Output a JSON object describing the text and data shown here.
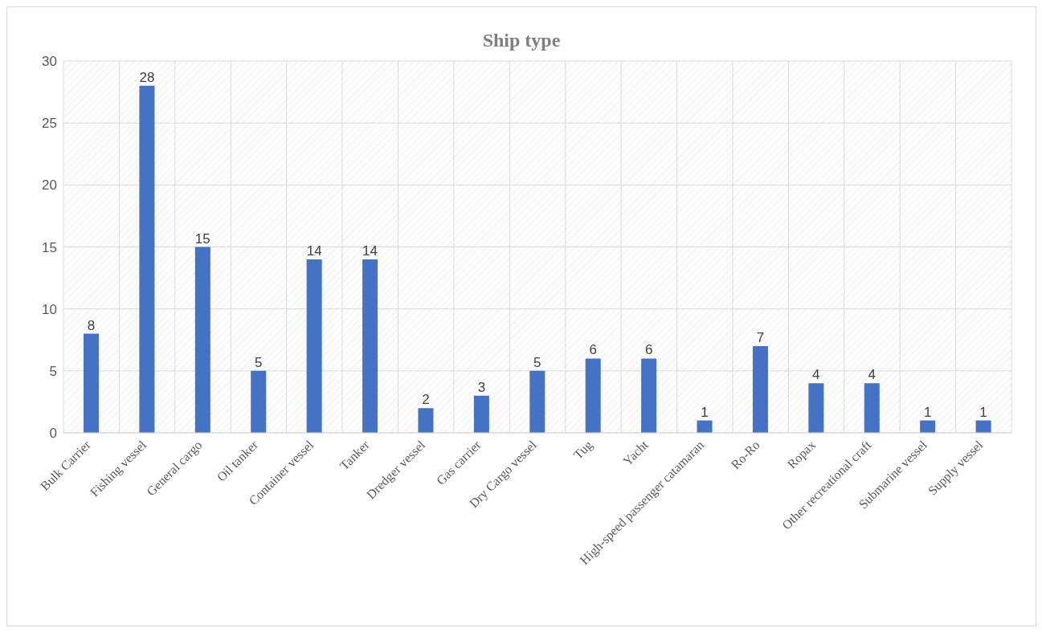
{
  "chart_data": {
    "type": "bar",
    "title": "Ship type",
    "categories": [
      "Bulk Carrier",
      "Fishing vessel",
      "General cargo",
      "Oil tanker",
      "Container vessel",
      "Tanker",
      "Dredger vessel",
      "Gas carrier",
      "Dry Cargo vessel",
      "Tug",
      "Yacht",
      "High-speed passenger catamaran",
      "Ro-Ro",
      "Ropax",
      "Other recreational craft",
      "Submarine vessel",
      "Supply vessel"
    ],
    "values": [
      8,
      28,
      15,
      5,
      14,
      14,
      2,
      3,
      5,
      6,
      6,
      1,
      7,
      4,
      4,
      1,
      1
    ],
    "color": "#4472c4",
    "ylim": [
      0,
      30
    ],
    "yticks": [
      0,
      5,
      10,
      15,
      20,
      25,
      30
    ],
    "grid": true,
    "data_labels": true
  }
}
